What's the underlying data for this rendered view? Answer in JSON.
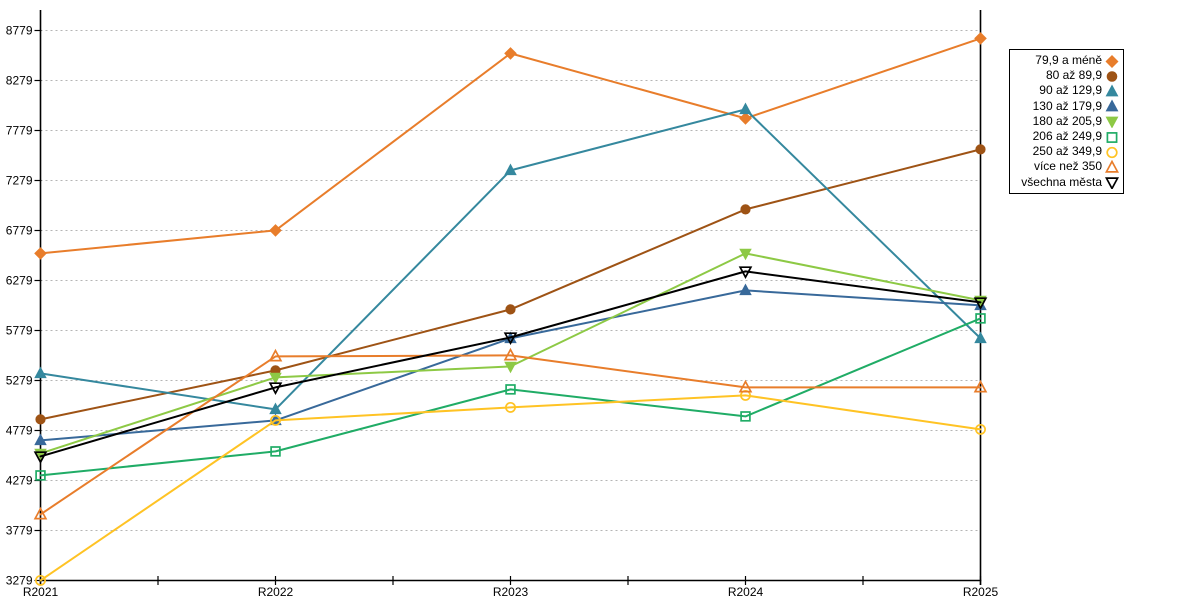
{
  "chart_data": {
    "type": "line",
    "title": "",
    "xlabel": "",
    "ylabel": "",
    "grid": true,
    "legend_position": "right",
    "categories": [
      "R2021",
      "R2022",
      "R2023",
      "R2024",
      "R2025"
    ],
    "y_ticks": [
      3279,
      3779,
      4279,
      4779,
      5279,
      5779,
      6279,
      6779,
      7279,
      7779,
      8279,
      8779
    ],
    "ylim": [
      3279,
      8929
    ],
    "series": [
      {
        "name": "79,9 a méně",
        "color": "#E87D2B",
        "marker": "diamond",
        "fill": "filled",
        "values": [
          6550,
          6780,
          8550,
          7900,
          8700
        ]
      },
      {
        "name": "80 až 89,9",
        "color": "#9E5315",
        "marker": "circle",
        "fill": "filled",
        "values": [
          4890,
          5380,
          5990,
          6990,
          7590
        ]
      },
      {
        "name": "90 až 129,9",
        "color": "#35889E",
        "marker": "triangle-up",
        "fill": "filled",
        "values": [
          5350,
          4990,
          7380,
          7990,
          5700
        ]
      },
      {
        "name": "130 až 179,9",
        "color": "#38699A",
        "marker": "triangle-up",
        "fill": "filled",
        "values": [
          4680,
          4880,
          5700,
          6180,
          6030
        ]
      },
      {
        "name": "180 až 205,9",
        "color": "#8DC945",
        "marker": "triangle-down",
        "fill": "filled",
        "values": [
          4550,
          5310,
          5420,
          6550,
          6080
        ]
      },
      {
        "name": "206 až 249,9",
        "color": "#20AC66",
        "marker": "square",
        "fill": "open",
        "values": [
          4330,
          4570,
          5190,
          4920,
          5900
        ]
      },
      {
        "name": "250 až 349,9",
        "color": "#FFC324",
        "marker": "circle",
        "fill": "open",
        "values": [
          3280,
          4880,
          5010,
          5130,
          4790
        ]
      },
      {
        "name": "více než 350",
        "color": "#E87D2B",
        "marker": "triangle-up",
        "fill": "open",
        "values": [
          3940,
          5520,
          5530,
          5210,
          5210
        ]
      },
      {
        "name": "všechna města",
        "color": "#000000",
        "marker": "triangle-down",
        "fill": "open",
        "values": [
          4520,
          5210,
          5710,
          6370,
          6060
        ]
      }
    ]
  }
}
